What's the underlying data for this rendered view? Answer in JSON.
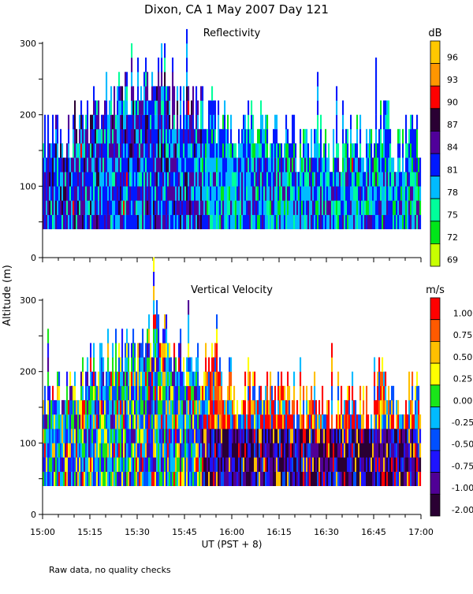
{
  "title": "Dixon, CA   1 May 2007   Day 121",
  "ylabel": "Altitude (m)",
  "xlabel": "UT  (PST + 8)",
  "footnote": "Raw data, no quality checks",
  "x_ticks": [
    "15:00",
    "15:15",
    "15:30",
    "15:45",
    "16:00",
    "16:15",
    "16:30",
    "16:45",
    "17:00"
  ],
  "y_ticks": [
    "0",
    "100",
    "200",
    "300"
  ],
  "chart_data": [
    {
      "type": "heatmap",
      "title": "Reflectivity",
      "units": "dB",
      "xlim_minutes_after_1500": [
        0,
        120
      ],
      "ylim": [
        0,
        300
      ],
      "lowest_gate_m": 40,
      "gate_spacing_m": 20,
      "colorbar": {
        "labels": [
          "96",
          "93",
          "90",
          "87",
          "84",
          "81",
          "78",
          "75",
          "72",
          "69"
        ],
        "colors": [
          "#ffc800",
          "#ff9600",
          "#ff0000",
          "#2a0033",
          "#50009a",
          "#0019ff",
          "#00bbff",
          "#00ff9b",
          "#00e619",
          "#c8ff00"
        ]
      },
      "echo_top_m_every_5min": [
        180,
        180,
        200,
        220,
        240,
        240,
        260,
        280,
        220,
        220,
        220,
        200,
        180,
        200,
        180,
        180,
        160,
        180,
        160,
        180,
        160,
        200,
        160,
        180,
        160
      ],
      "dominant_values_by_period": [
        {
          "period": "15:00-15:50",
          "range_dB": "78-87"
        },
        {
          "period": "15:50-17:00",
          "range_dB": "72-81"
        }
      ]
    },
    {
      "type": "heatmap",
      "title": "Vertical Velocity",
      "units": "m/s",
      "xlim_minutes_after_1500": [
        0,
        120
      ],
      "ylim": [
        0,
        300
      ],
      "lowest_gate_m": 40,
      "gate_spacing_m": 20,
      "colorbar": {
        "labels": [
          "1.00",
          "0.75",
          "0.50",
          "0.25",
          "0.00",
          "-0.25",
          "-0.50",
          "-0.75",
          "-1.00",
          "-2.00"
        ],
        "colors": [
          "#ff0000",
          "#ff5a00",
          "#ffc000",
          "#ffff00",
          "#19e619",
          "#00bbff",
          "#0050ff",
          "#1e14ff",
          "#500096",
          "#2a0033"
        ]
      },
      "echo_top_m_every_5min": [
        180,
        180,
        200,
        220,
        240,
        240,
        260,
        280,
        220,
        220,
        220,
        200,
        180,
        200,
        180,
        180,
        160,
        180,
        160,
        180,
        160,
        200,
        160,
        180,
        160
      ],
      "dominant_values_by_period": [
        {
          "period": "15:00-15:45",
          "range_m_s": "-0.50 to 0.50"
        },
        {
          "period": "15:45-17:00",
          "range_m_s": "-2.00 to -0.75 near surface, 0.50 to 1.00 in updrafts"
        }
      ]
    }
  ]
}
